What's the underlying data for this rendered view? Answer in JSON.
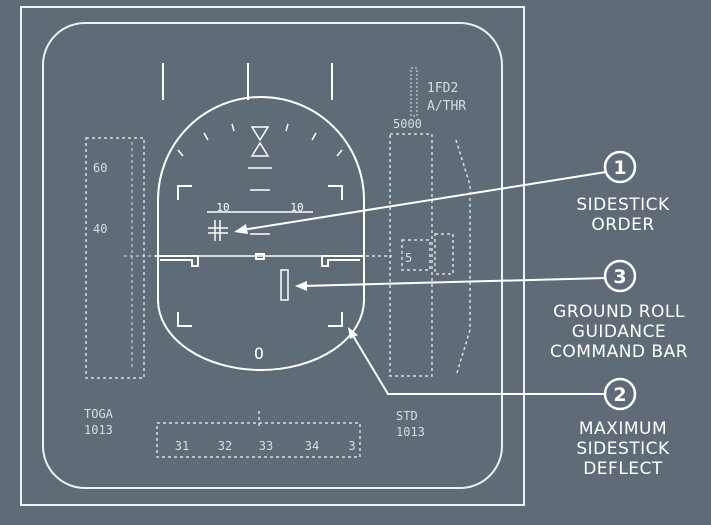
{
  "pfd": {
    "mode_line_1": "1FD2",
    "mode_line_2": "A/THR",
    "speed_tick_upper": "60",
    "speed_tick_lower": "40",
    "pitch_scale_left": "10",
    "pitch_scale_right": "10",
    "heading_digit": "O",
    "alt_upper_readout": "5000",
    "alt_tape_readout": "5",
    "bottom_left_line_1": "TOGA",
    "bottom_left_line_2": "1013",
    "bottom_right_line_1": "STD",
    "bottom_right_line_2": "1013",
    "heading_scale": [
      "31",
      "32",
      "33",
      "34",
      "3"
    ]
  },
  "callouts": [
    {
      "number": "1",
      "lines": [
        "SIDESTICK",
        "ORDER"
      ]
    },
    {
      "number": "3",
      "lines": [
        "GROUND ROLL",
        "GUIDANCE",
        "COMMAND BAR"
      ]
    },
    {
      "number": "2",
      "lines": [
        "MAXIMUM",
        "SIDESTICK",
        "DEFLECT"
      ]
    }
  ],
  "colors": {
    "background": "#5f6b77",
    "line": "#ffffff",
    "dashed": "#d8dde2"
  }
}
